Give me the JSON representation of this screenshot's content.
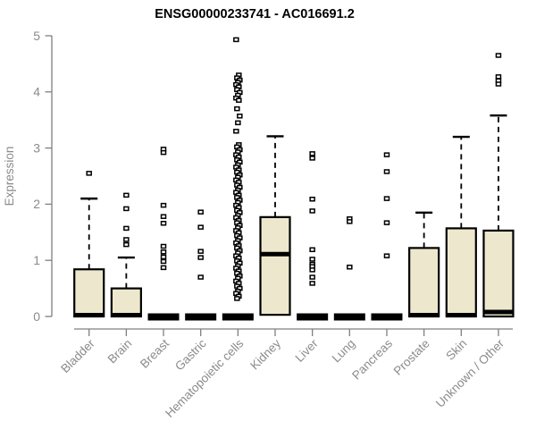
{
  "chart_data": {
    "type": "boxplot",
    "title": "ENSG00000233741 - AC016691.2",
    "ylabel": "Expression",
    "xlabel": "",
    "ylim": [
      0,
      5
    ],
    "yticks": [
      0,
      1,
      2,
      3,
      4,
      5
    ],
    "grid": false,
    "legend": "none",
    "categories": [
      "Bladder",
      "Brain",
      "Breast",
      "Gastric",
      "Hematopoietic cells",
      "Kidney",
      "Liver",
      "Lung",
      "Pancreas",
      "Prostate",
      "Skin",
      "Unknown / Other"
    ],
    "boxes": [
      {
        "category": "Bladder",
        "q1": 0,
        "median": 0,
        "q3": 0.84,
        "whisker_low": 0,
        "whisker_high": 2.1,
        "outliers": [
          2.55
        ]
      },
      {
        "category": "Brain",
        "q1": 0,
        "median": 0,
        "q3": 0.5,
        "whisker_low": 0,
        "whisker_high": 1.05,
        "outliers": [
          2.16,
          1.92,
          1.57,
          1.37,
          1.28
        ]
      },
      {
        "category": "Breast",
        "q1": 0,
        "median": 0,
        "q3": 0.02,
        "whisker_low": 0,
        "whisker_high": 0.02,
        "outliers": [
          2.98,
          2.92,
          1.98,
          1.78,
          1.66,
          1.25,
          1.15,
          1.06,
          0.98,
          0.87
        ]
      },
      {
        "category": "Gastric",
        "q1": 0,
        "median": 0,
        "q3": 0.02,
        "whisker_low": 0,
        "whisker_high": 0.02,
        "outliers": [
          1.86,
          1.59,
          1.16,
          1.05,
          0.7
        ]
      },
      {
        "category": "Hematopoietic cells",
        "q1": 0,
        "median": 0,
        "q3": 0.03,
        "whisker_low": 0,
        "whisker_high": 0.03,
        "outliers": [
          4.93,
          4.3,
          4.25,
          4.21,
          4.17,
          4.13,
          4.09,
          4.04,
          3.99,
          3.94,
          3.89,
          3.85,
          3.7,
          3.57,
          3.45,
          3.3,
          3.06,
          3.02,
          2.97,
          2.93,
          2.88,
          2.84,
          2.79,
          2.75,
          2.7,
          2.66,
          2.61,
          2.57,
          2.52,
          2.48,
          2.43,
          2.39,
          2.34,
          2.3,
          2.25,
          2.21,
          2.16,
          2.12,
          2.07,
          2.03,
          1.98,
          1.94,
          1.89,
          1.85,
          1.8,
          1.76,
          1.71,
          1.67,
          1.62,
          1.58,
          1.53,
          1.49,
          1.44,
          1.4,
          1.35,
          1.31,
          1.26,
          1.22,
          1.17,
          1.13,
          1.08,
          1.04,
          0.99,
          0.95,
          0.9,
          0.86,
          0.81,
          0.77,
          0.72,
          0.68,
          0.63,
          0.59,
          0.54,
          0.5,
          0.45,
          0.41,
          0.36,
          0.32
        ]
      },
      {
        "category": "Kidney",
        "q1": 0.03,
        "median": 1.11,
        "q3": 1.77,
        "whisker_low": 0.03,
        "whisker_high": 3.21,
        "outliers": []
      },
      {
        "category": "Liver",
        "q1": 0,
        "median": 0,
        "q3": 0.02,
        "whisker_low": 0,
        "whisker_high": 0.02,
        "outliers": [
          2.9,
          2.82,
          2.09,
          1.88,
          1.19,
          1.02,
          0.93,
          0.89,
          0.83,
          0.7,
          0.59
        ]
      },
      {
        "category": "Lung",
        "q1": 0,
        "median": 0,
        "q3": 0.02,
        "whisker_low": 0,
        "whisker_high": 0.02,
        "outliers": [
          1.74,
          1.69,
          0.88
        ]
      },
      {
        "category": "Pancreas",
        "q1": 0,
        "median": 0,
        "q3": 0.02,
        "whisker_low": 0,
        "whisker_high": 0.02,
        "outliers": [
          2.88,
          2.58,
          2.1,
          1.67,
          1.08
        ]
      },
      {
        "category": "Prostate",
        "q1": 0,
        "median": 0,
        "q3": 1.22,
        "whisker_low": 0,
        "whisker_high": 1.85,
        "outliers": []
      },
      {
        "category": "Skin",
        "q1": 0,
        "median": 0.02,
        "q3": 1.57,
        "whisker_low": 0,
        "whisker_high": 3.2,
        "outliers": []
      },
      {
        "category": "Unknown / Other",
        "q1": 0,
        "median": 0.08,
        "q3": 1.53,
        "whisker_low": 0,
        "whisker_high": 3.58,
        "outliers": [
          4.65,
          4.27,
          4.2,
          4.14
        ]
      }
    ],
    "colors": {
      "box_fill": "#ede8cd",
      "box_border": "#000000",
      "median": "#000000",
      "whisker": "#000000",
      "outlier": "#000000",
      "axis": "#7f7f7f",
      "labels": "#8b8b8b",
      "title": "#000000",
      "background": "#ffffff"
    }
  }
}
